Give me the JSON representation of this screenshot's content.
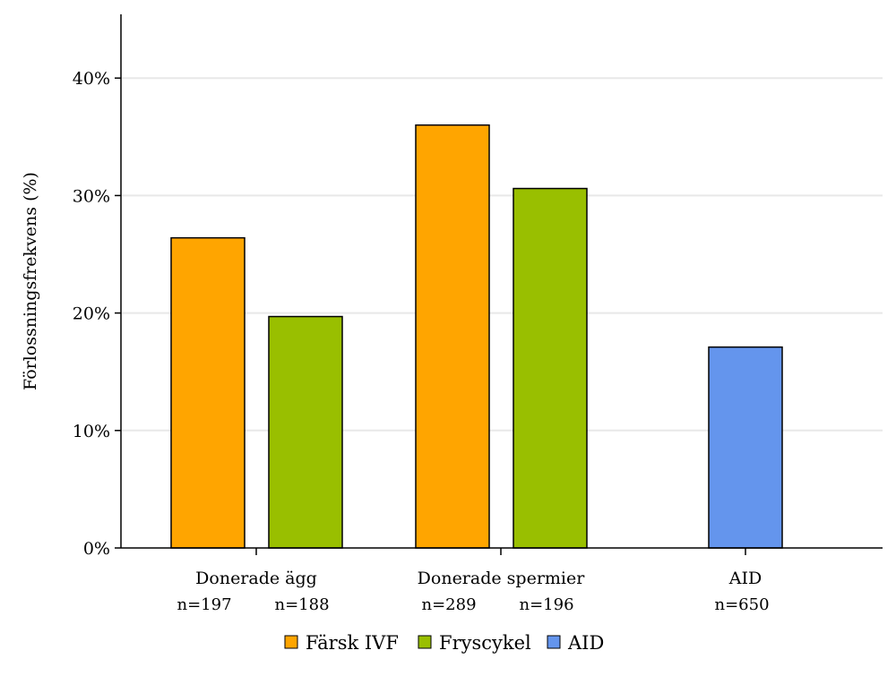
{
  "chart_data": {
    "type": "bar",
    "title": "",
    "xlabel": "",
    "ylabel": "Förlossningsfrekvens (%)",
    "ylim": [
      0,
      45
    ],
    "yticks": [
      0,
      10,
      20,
      30,
      40
    ],
    "ytick_labels": [
      "0%",
      "10%",
      "20%",
      "30%",
      "40%"
    ],
    "grid": "horizontal",
    "legend_position": "bottom",
    "series": [
      {
        "name": "Färsk IVF",
        "color": "#FFA500"
      },
      {
        "name": "Fryscykel",
        "color": "#99BF00"
      },
      {
        "name": "AID",
        "color": "#6495ED"
      }
    ],
    "groups": [
      {
        "category": "Donerade ägg",
        "bars": [
          {
            "series": "Färsk IVF",
            "value": 26.4,
            "n_label": "n=197"
          },
          {
            "series": "Fryscykel",
            "value": 19.7,
            "n_label": "n=188"
          }
        ]
      },
      {
        "category": "Donerade spermier",
        "bars": [
          {
            "series": "Färsk IVF",
            "value": 36.0,
            "n_label": "n=289"
          },
          {
            "series": "Fryscykel",
            "value": 30.6,
            "n_label": "n=196"
          }
        ]
      },
      {
        "category": "AID",
        "bars": [
          {
            "series": "AID",
            "value": 17.1,
            "n_label": "n=650"
          }
        ]
      }
    ]
  }
}
